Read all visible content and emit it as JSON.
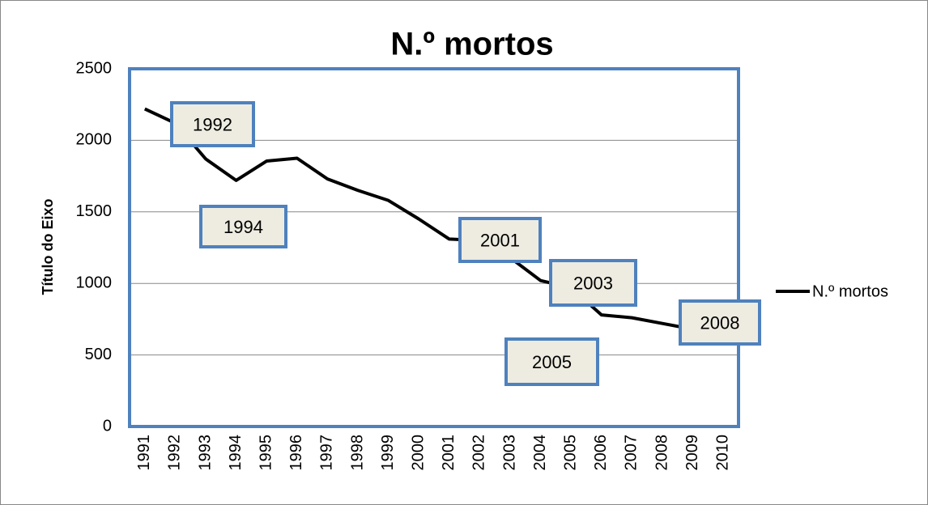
{
  "chart_data": {
    "type": "line",
    "title": "N.º mortos",
    "y_label": "Título do Eixo",
    "categories": [
      "1991",
      "1992",
      "1993",
      "1994",
      "1995",
      "1996",
      "1997",
      "1998",
      "1999",
      "2000",
      "2001",
      "2002",
      "2003",
      "2004",
      "2005",
      "2006",
      "2007",
      "2008",
      "2009",
      "2010"
    ],
    "series": [
      {
        "name": "N.º mortos",
        "color": "#000000",
        "values": [
          2220,
          2120,
          1870,
          1720,
          1855,
          1875,
          1730,
          1650,
          1580,
          1450,
          1310,
          1300,
          1180,
          1020,
          970,
          780,
          760,
          720,
          680,
          640
        ]
      }
    ],
    "ylim": [
      0,
      2500
    ],
    "yticks": [
      0,
      500,
      1000,
      1500,
      2000,
      2500
    ],
    "grid": true,
    "legend": "right",
    "annotations": [
      "1992",
      "1994",
      "2001",
      "2003",
      "2005",
      "2008"
    ]
  }
}
